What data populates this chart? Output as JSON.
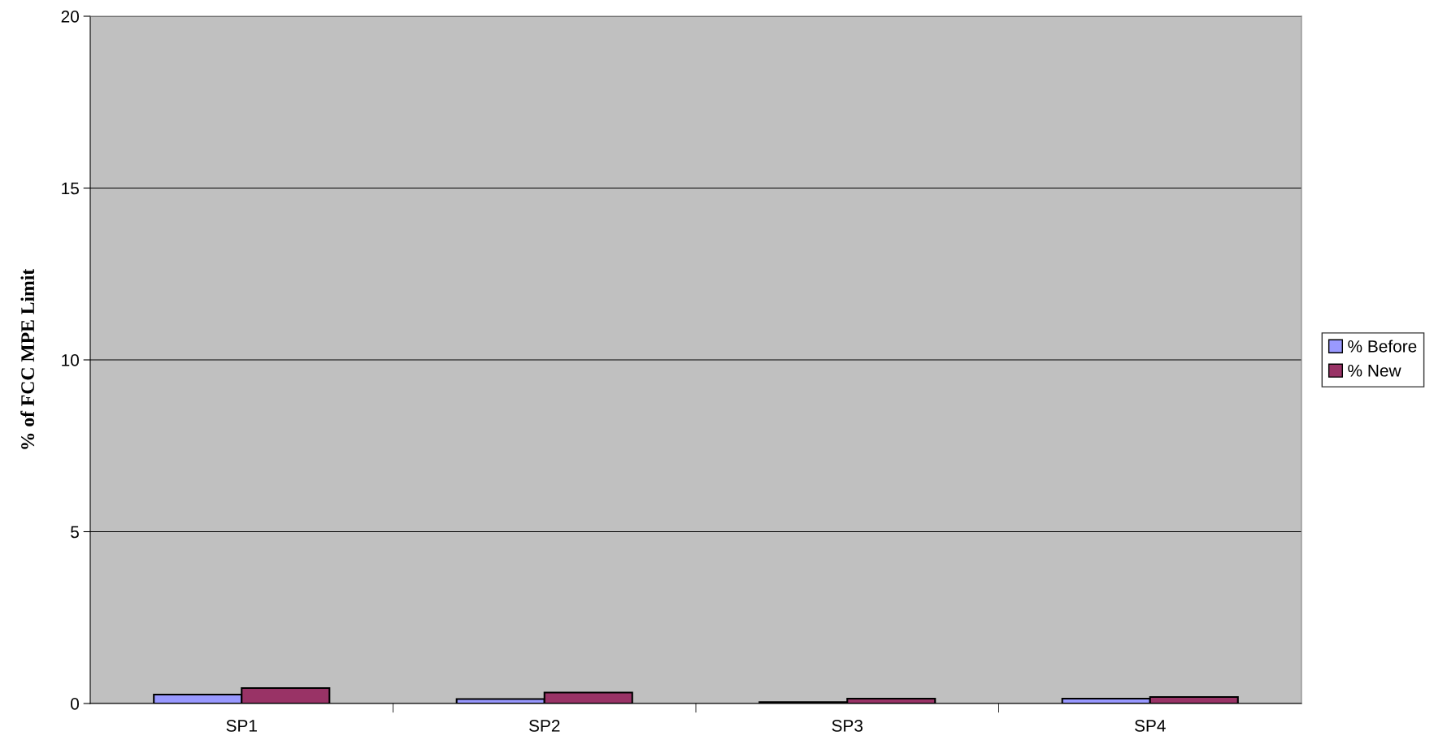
{
  "chart_data": {
    "type": "bar",
    "ylabel": "% of FCC MPE Limit",
    "categories": [
      "SP1",
      "SP2",
      "SP3",
      "SP4"
    ],
    "series": [
      {
        "name": "% Before",
        "color": "#9999ff",
        "values": [
          0.26,
          0.13,
          0.04,
          0.14
        ]
      },
      {
        "name": "% New",
        "color": "#993366",
        "values": [
          0.45,
          0.32,
          0.14,
          0.19
        ]
      }
    ],
    "ylim": [
      0,
      20
    ],
    "yticks": [
      0,
      5,
      10,
      15,
      20
    ],
    "grid": "y",
    "legend": "right"
  }
}
